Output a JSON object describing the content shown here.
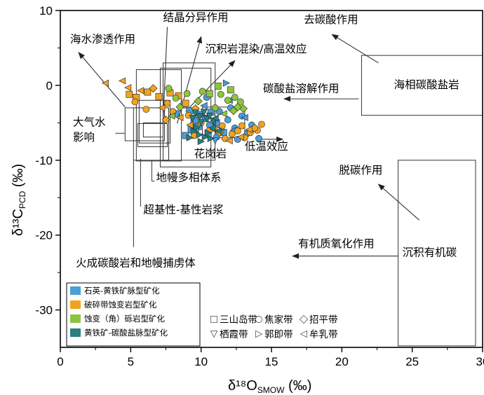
{
  "chart_data": {
    "type": "scatter",
    "xlabel": "δ¹⁸O",
    "xlabel_sub": "SMOW",
    "xlabel_unit": "(‰)",
    "ylabel": "δ¹³C",
    "ylabel_sub": "PCD",
    "ylabel_unit": "(‰)",
    "xlim": [
      0,
      30
    ],
    "ylim": [
      -35,
      10
    ],
    "xticks": [
      0,
      5,
      10,
      15,
      20,
      25,
      30
    ],
    "yticks": [
      10,
      0,
      -10,
      -20,
      -30
    ],
    "grid": false,
    "legend": {
      "placement": "bottom-left",
      "types": [
        {
          "name": "石英-黄铁矿脉型矿化",
          "color": "#4a9fd8"
        },
        {
          "name": "破碎带蚀变岩型矿化",
          "color": "#f0a320"
        },
        {
          "name": "蚀变（角）砾岩型矿化",
          "color": "#8cc63e"
        },
        {
          "name": "黄铁矿-碳酸盐脉型矿化",
          "color": "#2a7f7f"
        }
      ],
      "belts": [
        {
          "symbol": "square",
          "name": "三山岛带"
        },
        {
          "symbol": "circle",
          "name": "焦家带"
        },
        {
          "symbol": "diamond",
          "name": "招平带"
        },
        {
          "symbol": "triangle-down",
          "name": "栖霞带"
        },
        {
          "symbol": "triangle-right",
          "name": "郭即带"
        },
        {
          "symbol": "triangle-left",
          "name": "牟乳带"
        }
      ]
    },
    "fields": [
      {
        "name": "大气水影响",
        "x": [
          4.6,
          7.4
        ],
        "y": [
          -7.4,
          -3.0
        ]
      },
      {
        "name": "火成碳酸岩和地幔捕虏体",
        "x": [
          5.2,
          7.7
        ],
        "y": [
          -10.0,
          -3.0
        ]
      },
      {
        "name": "地幔多相体系",
        "x": [
          5.6,
          7.8
        ],
        "y": [
          -7.7,
          -2.0
        ]
      },
      {
        "name": "超基性-基性岩浆",
        "x": [
          5.5,
          7.6
        ],
        "y": [
          -8.2,
          -5.1
        ]
      },
      {
        "name": "",
        "x": [
          5.9,
          7.3
        ],
        "y": [
          -6.9,
          -5.0
        ]
      },
      {
        "name": "",
        "x": [
          5.4,
          8.6
        ],
        "y": [
          -10.1,
          2.1
        ]
      },
      {
        "name": "花岗岩",
        "x": [
          7.1,
          10.7
        ],
        "y": [
          -10.9,
          2.3
        ]
      },
      {
        "name": "",
        "x": [
          7.3,
          11.0
        ],
        "y": [
          -10.0,
          3.0
        ]
      },
      {
        "name": "",
        "x": [
          10.1,
          13.1
        ],
        "y": [
          -7.0,
          -2.9
        ]
      },
      {
        "name": "海相碳酸盐岩",
        "x": [
          21.4,
          30.0
        ],
        "y": [
          -4.0,
          4.0
        ]
      },
      {
        "name": "沉积有机碳",
        "x": [
          24.0,
          29.5
        ],
        "y": [
          -34.8,
          -10.0
        ]
      }
    ],
    "annotations": [
      {
        "text": "结晶分异作用",
        "x": 7.3,
        "y": 8.6
      },
      {
        "text": "沉积岩混染/高温效应",
        "x": 10.3,
        "y": 4.4
      },
      {
        "text": "海水渗透作用",
        "x": 0.7,
        "y": 5.7
      },
      {
        "text": "大气水",
        "x": 0.9,
        "y": -5.4
      },
      {
        "text": "影响",
        "x": 0.9,
        "y": -7.4
      },
      {
        "text": "花岗岩",
        "x": 9.5,
        "y": -9.6
      },
      {
        "text": "地幔多相体系",
        "x": 6.8,
        "y": -12.8
      },
      {
        "text": "超基性-基性岩浆",
        "x": 5.9,
        "y": -17.1
      },
      {
        "text": "火成碳酸岩和地幔捕虏体",
        "x": 1.1,
        "y": -24.2
      },
      {
        "text": "低温效应",
        "x": 13.1,
        "y": -8.6
      },
      {
        "text": "去碳酸作用",
        "x": 17.3,
        "y": 8.3
      },
      {
        "text": "碳酸盐溶解作用",
        "x": 14.4,
        "y": -0.9
      },
      {
        "text": "海相碳酸盐岩",
        "x": 23.7,
        "y": -0.4
      },
      {
        "text": "脱碳作用",
        "x": 19.8,
        "y": -11.8
      },
      {
        "text": "有机质氧化作用",
        "x": 16.9,
        "y": -21.6
      },
      {
        "text": "沉积有机碳",
        "x": 24.3,
        "y": -22.8
      }
    ],
    "series": [
      {
        "name": "石英-黄铁矿脉型矿化",
        "points": [
          [
            8.8,
            -2.6,
            "square"
          ],
          [
            9.2,
            -3.4,
            "square"
          ],
          [
            9.5,
            -4.8,
            "square"
          ],
          [
            9.8,
            -5.5,
            "square"
          ],
          [
            10.0,
            -3.9,
            "square"
          ],
          [
            10.3,
            -4.4,
            "square"
          ],
          [
            9.3,
            -5.9,
            "square"
          ],
          [
            10.7,
            -3.6,
            "square"
          ],
          [
            9.6,
            -6.2,
            "square"
          ],
          [
            8.2,
            -3.8,
            "square"
          ],
          [
            8.9,
            -6.7,
            "square"
          ],
          [
            10.5,
            -6.5,
            "square"
          ],
          [
            11.1,
            -5.0,
            "square"
          ],
          [
            11.6,
            -6.3,
            "square"
          ],
          [
            11.3,
            -3.5,
            "circle"
          ],
          [
            11.9,
            -4.6,
            "circle"
          ],
          [
            12.4,
            -5.7,
            "circle"
          ],
          [
            12.9,
            -4.1,
            "circle"
          ],
          [
            13.3,
            -6.4,
            "circle"
          ],
          [
            11.1,
            -6.9,
            "circle"
          ],
          [
            10.6,
            -5.3,
            "circle"
          ],
          [
            12.1,
            -3.0,
            "circle"
          ],
          [
            13.6,
            -5.3,
            "circle"
          ],
          [
            12.6,
            -7.2,
            "circle"
          ],
          [
            14.1,
            -7.1,
            "circle"
          ],
          [
            10.2,
            -2.7,
            "triangle-left"
          ],
          [
            10.8,
            -4.9,
            "triangle-left"
          ],
          [
            11.4,
            -5.6,
            "triangle-left"
          ],
          [
            12.3,
            -6.0,
            "triangle-left"
          ],
          [
            13.1,
            -4.3,
            "triangle-left"
          ],
          [
            12.0,
            -2.0,
            "triangle-left"
          ],
          [
            9.7,
            -4.1,
            "triangle-left"
          ],
          [
            11.8,
            0.3,
            "triangle-right"
          ],
          [
            11.0,
            -7.4,
            "triangle-down"
          ],
          [
            10.4,
            -1.6,
            "circle"
          ]
        ]
      },
      {
        "name": "破碎带蚀变岩型矿化",
        "points": [
          [
            4.9,
            -1.2,
            "square"
          ],
          [
            5.4,
            -1.6,
            "square"
          ],
          [
            6.2,
            -0.9,
            "square"
          ],
          [
            7.0,
            -1.5,
            "square"
          ],
          [
            7.8,
            -1.0,
            "square"
          ],
          [
            8.4,
            -1.4,
            "square"
          ],
          [
            8.9,
            -2.4,
            "square"
          ],
          [
            5.3,
            -2.2,
            "circle"
          ],
          [
            6.1,
            -3.2,
            "circle"
          ],
          [
            7.6,
            -2.4,
            "circle"
          ],
          [
            8.0,
            -3.5,
            "circle"
          ],
          [
            9.1,
            -4.0,
            "circle"
          ],
          [
            10.0,
            -5.0,
            "circle"
          ],
          [
            11.5,
            -5.4,
            "circle"
          ],
          [
            12.6,
            -6.1,
            "circle"
          ],
          [
            13.5,
            -6.3,
            "circle"
          ],
          [
            14.3,
            -5.2,
            "circle"
          ],
          [
            14.0,
            -6.0,
            "circle"
          ],
          [
            13.1,
            -7.0,
            "circle"
          ],
          [
            12.2,
            -6.5,
            "circle"
          ],
          [
            11.7,
            -7.1,
            "circle"
          ],
          [
            10.6,
            -6.0,
            "circle"
          ],
          [
            9.5,
            -6.7,
            "circle"
          ],
          [
            12.9,
            -5.4,
            "circle"
          ],
          [
            13.8,
            -5.7,
            "circle"
          ],
          [
            4.4,
            0.6,
            "triangle-left"
          ],
          [
            3.2,
            0.3,
            "triangle-left"
          ],
          [
            4.8,
            -0.3,
            "triangle-left"
          ],
          [
            5.7,
            -0.7,
            "triangle-left"
          ],
          [
            7.2,
            -3.0,
            "triangle-left"
          ],
          [
            8.5,
            -4.3,
            "triangle-left"
          ],
          [
            9.2,
            -5.3,
            "triangle-left"
          ],
          [
            10.9,
            -5.9,
            "triangle-left"
          ],
          [
            12.0,
            -7.4,
            "triangle-left"
          ],
          [
            12.8,
            -6.9,
            "triangle-left"
          ],
          [
            13.4,
            -5.9,
            "triangle-left"
          ],
          [
            6.6,
            -0.4,
            "diamond"
          ],
          [
            7.5,
            -4.6,
            "diamond"
          ],
          [
            9.6,
            -3.1,
            "diamond"
          ],
          [
            11.3,
            -6.3,
            "diamond"
          ]
        ]
      },
      {
        "name": "蚀变（角）砾岩型矿化",
        "points": [
          [
            7.7,
            -0.4,
            "circle"
          ],
          [
            8.2,
            -1.7,
            "circle"
          ],
          [
            9.0,
            -1.1,
            "circle"
          ],
          [
            11.4,
            -1.2,
            "circle"
          ],
          [
            11.9,
            -2.0,
            "circle"
          ],
          [
            12.4,
            -1.6,
            "circle"
          ],
          [
            12.8,
            -2.2,
            "circle"
          ],
          [
            11.0,
            -3.0,
            "circle"
          ],
          [
            10.1,
            -0.8,
            "circle"
          ],
          [
            8.5,
            -2.9,
            "diamond"
          ],
          [
            9.8,
            -2.1,
            "diamond"
          ],
          [
            12.3,
            -3.4,
            "diamond"
          ],
          [
            13.0,
            -3.1,
            "diamond"
          ],
          [
            12.6,
            -2.9,
            "diamond"
          ],
          [
            12.1,
            -0.6,
            "square"
          ],
          [
            11.2,
            -0.1,
            "square"
          ],
          [
            10.6,
            -1.1,
            "square"
          ],
          [
            7.9,
            -4.1,
            "triangle-left"
          ],
          [
            11.6,
            -3.8,
            "triangle-left"
          ]
        ]
      },
      {
        "name": "黄铁矿-碳酸盐脉型矿化",
        "points": [
          [
            9.6,
            -3.7,
            "triangle-down"
          ],
          [
            9.9,
            -4.2,
            "triangle-down"
          ],
          [
            10.2,
            -3.6,
            "triangle-down"
          ],
          [
            10.4,
            -4.5,
            "triangle-down"
          ],
          [
            10.0,
            -5.0,
            "triangle-down"
          ],
          [
            10.6,
            -4.1,
            "triangle-down"
          ],
          [
            9.4,
            -4.4,
            "triangle-down"
          ],
          [
            10.9,
            -4.8,
            "triangle-down"
          ],
          [
            9.5,
            -6.1,
            "triangle-right"
          ],
          [
            9.9,
            -6.6,
            "triangle-right"
          ],
          [
            10.3,
            -6.9,
            "triangle-right"
          ],
          [
            10.7,
            -7.1,
            "triangle-right"
          ],
          [
            9.2,
            -7.0,
            "triangle-right"
          ],
          [
            10.0,
            -7.5,
            "triangle-right"
          ],
          [
            10.5,
            -6.3,
            "triangle-right"
          ],
          [
            9.7,
            -5.6,
            "triangle-right"
          ],
          [
            10.8,
            -5.7,
            "triangle-left"
          ],
          [
            11.2,
            -6.1,
            "triangle-left"
          ],
          [
            11.0,
            -4.4,
            "triangle-left"
          ]
        ]
      }
    ]
  }
}
